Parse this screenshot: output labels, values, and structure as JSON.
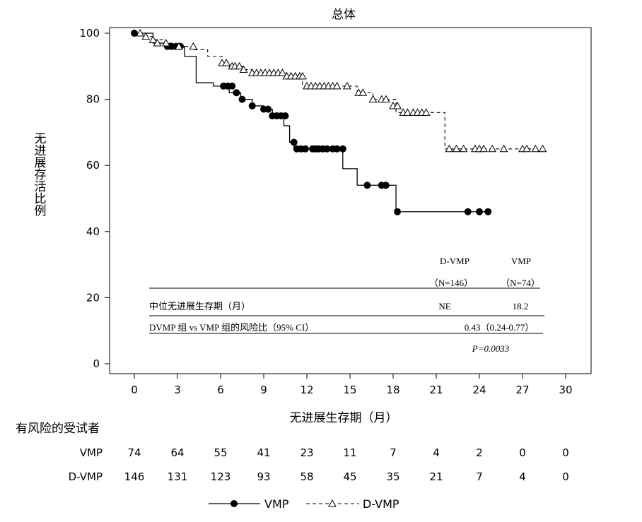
{
  "chart_data": {
    "type": "line",
    "title": "总体",
    "xlabel": "无进展生存期（月）",
    "ylabel": "无进展存活比例",
    "xlim": [
      0,
      30
    ],
    "ylim": [
      0,
      100
    ],
    "x_ticks": [
      "0",
      "3",
      "6",
      "9",
      "12",
      "15",
      "18",
      "21",
      "24",
      "27",
      "30"
    ],
    "y_ticks": [
      "0",
      "20",
      "40",
      "60",
      "80",
      "100"
    ],
    "series": [
      {
        "name": "VMP",
        "line_style": "solid",
        "marker": "filled-circle",
        "color": "#000000",
        "steps": [
          [
            0,
            100
          ],
          [
            1.3,
            97
          ],
          [
            2.2,
            96
          ],
          [
            3.5,
            93
          ],
          [
            4.3,
            85
          ],
          [
            5.5,
            84
          ],
          [
            6.6,
            82
          ],
          [
            7.4,
            80
          ],
          [
            8.2,
            78
          ],
          [
            9.0,
            77
          ],
          [
            9.6,
            75
          ],
          [
            10.4,
            72
          ],
          [
            10.8,
            67
          ],
          [
            11.1,
            65
          ],
          [
            14.5,
            59
          ],
          [
            15.5,
            54
          ],
          [
            18.2,
            46
          ],
          [
            24.7,
            46
          ]
        ],
        "censored": [
          [
            0,
            100
          ],
          [
            2.3,
            96
          ],
          [
            2.6,
            96
          ],
          [
            2.9,
            96
          ],
          [
            3.2,
            96
          ],
          [
            6.2,
            84
          ],
          [
            6.5,
            84
          ],
          [
            6.8,
            84
          ],
          [
            7.1,
            82
          ],
          [
            7.5,
            80
          ],
          [
            8.2,
            78
          ],
          [
            9.0,
            77
          ],
          [
            9.3,
            77
          ],
          [
            9.6,
            75
          ],
          [
            9.9,
            75
          ],
          [
            10.2,
            75
          ],
          [
            10.5,
            75
          ],
          [
            11.1,
            67
          ],
          [
            11.3,
            65
          ],
          [
            11.6,
            65
          ],
          [
            11.9,
            65
          ],
          [
            12.4,
            65
          ],
          [
            12.6,
            65
          ],
          [
            12.8,
            65
          ],
          [
            13.1,
            65
          ],
          [
            13.4,
            65
          ],
          [
            13.8,
            65
          ],
          [
            14.1,
            65
          ],
          [
            14.5,
            65
          ],
          [
            16.2,
            54
          ],
          [
            17.2,
            54
          ],
          [
            17.5,
            54
          ],
          [
            18.3,
            46
          ],
          [
            23.2,
            46
          ],
          [
            24.0,
            46
          ],
          [
            24.6,
            46
          ]
        ]
      },
      {
        "name": "D-VMP",
        "line_style": "dashed",
        "marker": "open-triangle",
        "color": "#000000",
        "steps": [
          [
            0,
            100
          ],
          [
            0.8,
            99
          ],
          [
            1.3,
            98
          ],
          [
            2.1,
            97
          ],
          [
            2.6,
            96
          ],
          [
            4.0,
            95
          ],
          [
            5.1,
            93
          ],
          [
            6.1,
            91
          ],
          [
            6.6,
            90
          ],
          [
            7.6,
            89
          ],
          [
            8.2,
            88
          ],
          [
            10.6,
            87
          ],
          [
            11.7,
            84
          ],
          [
            15.5,
            82
          ],
          [
            16.6,
            80
          ],
          [
            18.2,
            76
          ],
          [
            21.6,
            65
          ],
          [
            28.4,
            65
          ]
        ],
        "censored": [
          [
            0.4,
            100
          ],
          [
            0.8,
            99
          ],
          [
            1.3,
            98
          ],
          [
            1.6,
            97
          ],
          [
            2.2,
            97
          ],
          [
            3.1,
            96
          ],
          [
            4.1,
            96
          ],
          [
            6.1,
            91
          ],
          [
            6.4,
            91
          ],
          [
            6.8,
            90
          ],
          [
            7.0,
            90
          ],
          [
            7.3,
            90
          ],
          [
            7.6,
            89
          ],
          [
            8.2,
            88
          ],
          [
            8.5,
            88
          ],
          [
            8.8,
            88
          ],
          [
            9.1,
            88
          ],
          [
            9.4,
            88
          ],
          [
            9.7,
            88
          ],
          [
            10.0,
            88
          ],
          [
            10.3,
            88
          ],
          [
            10.6,
            87
          ],
          [
            10.9,
            87
          ],
          [
            11.2,
            87
          ],
          [
            11.5,
            87
          ],
          [
            11.7,
            87
          ],
          [
            12.0,
            84
          ],
          [
            12.3,
            84
          ],
          [
            12.6,
            84
          ],
          [
            12.9,
            84
          ],
          [
            13.2,
            84
          ],
          [
            13.5,
            84
          ],
          [
            13.8,
            84
          ],
          [
            14.1,
            84
          ],
          [
            14.8,
            84
          ],
          [
            15.6,
            82
          ],
          [
            15.9,
            82
          ],
          [
            16.6,
            80
          ],
          [
            17.2,
            80
          ],
          [
            17.5,
            80
          ],
          [
            18.0,
            78
          ],
          [
            18.3,
            78
          ],
          [
            18.7,
            76
          ],
          [
            19.0,
            76
          ],
          [
            19.4,
            76
          ],
          [
            19.7,
            76
          ],
          [
            20.0,
            76
          ],
          [
            20.3,
            76
          ],
          [
            21.9,
            65
          ],
          [
            22.4,
            65
          ],
          [
            22.9,
            65
          ],
          [
            23.7,
            65
          ],
          [
            24.0,
            65
          ],
          [
            24.3,
            65
          ],
          [
            24.9,
            65
          ],
          [
            25.7,
            65
          ],
          [
            27.0,
            65
          ],
          [
            27.3,
            65
          ],
          [
            27.9,
            65
          ],
          [
            28.4,
            65
          ]
        ]
      }
    ],
    "legend": {
      "position": "bottom-center"
    },
    "grid": false
  },
  "inset_table": {
    "col_header_1": "D-VMP",
    "col_header_2": "VMP",
    "col_n_1": "（N=146）",
    "col_n_2": "（N=74）",
    "row1_label": "中位无进展生存期（月）",
    "row1_val_1": "NE",
    "row1_val_2": "18.2",
    "row2_label": "DVMP 组  vs VMP 组的风险比（95% CI）",
    "row2_value": "0.43（0.24-0.77）",
    "p_value": "P=0.0033"
  },
  "risk_table": {
    "title": "有风险的受试者",
    "rows": [
      {
        "label": "VMP",
        "values": [
          "74",
          "64",
          "55",
          "41",
          "23",
          "11",
          "7",
          "4",
          "2",
          "0",
          "0"
        ]
      },
      {
        "label": "D-VMP",
        "values": [
          "146",
          "131",
          "123",
          "93",
          "58",
          "45",
          "35",
          "21",
          "7",
          "4",
          "0"
        ]
      }
    ]
  }
}
